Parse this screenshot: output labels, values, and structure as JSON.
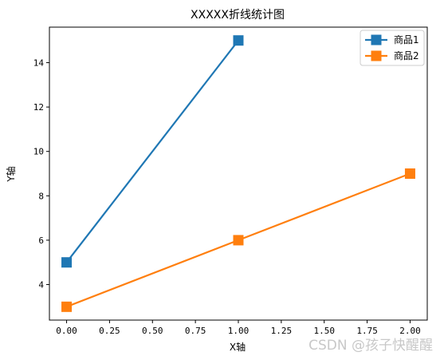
{
  "chart_data": {
    "type": "line",
    "title": "XXXXX折线统计图",
    "xlabel": "X轴",
    "ylabel": "Y轴",
    "xlim": [
      -0.1,
      2.1
    ],
    "ylim": [
      2.4,
      15.6
    ],
    "xticks": [
      0.0,
      0.25,
      0.5,
      0.75,
      1.0,
      1.25,
      1.5,
      1.75,
      2.0
    ],
    "xtick_labels": [
      "0.00",
      "0.25",
      "0.50",
      "0.75",
      "1.00",
      "1.25",
      "1.50",
      "1.75",
      "2.00"
    ],
    "yticks": [
      4,
      6,
      8,
      10,
      12,
      14
    ],
    "ytick_labels": [
      "4",
      "6",
      "8",
      "10",
      "12",
      "14"
    ],
    "grid": false,
    "legend_position": "top-right",
    "series": [
      {
        "name": "商品1",
        "color": "#1f77b4",
        "marker": "square",
        "x": [
          0,
          1
        ],
        "y": [
          5,
          15
        ]
      },
      {
        "name": "商品2",
        "color": "#ff7f0e",
        "marker": "square",
        "x": [
          0,
          1,
          2
        ],
        "y": [
          3,
          6,
          9
        ]
      }
    ]
  },
  "watermark": "CSDN @孩子快醒醒"
}
